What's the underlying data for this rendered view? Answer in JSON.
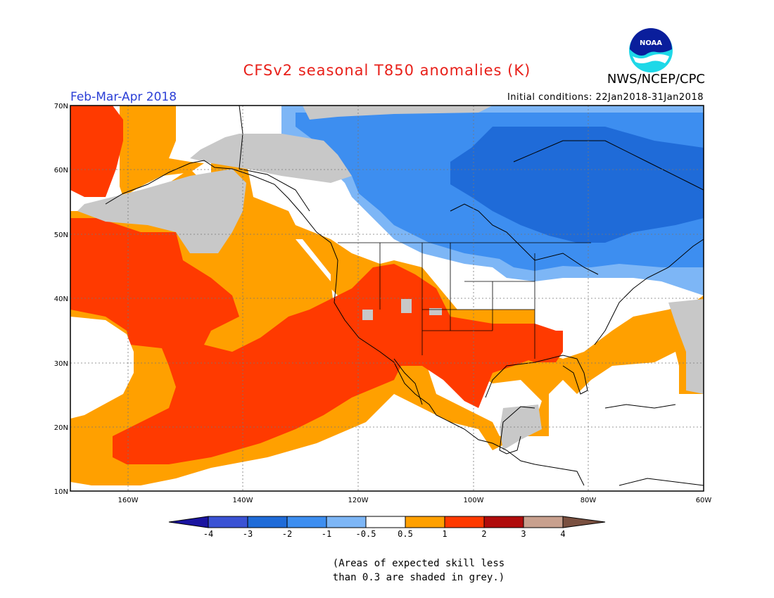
{
  "header": {
    "title": "CFSv2 seasonal T850 anomalies (K)",
    "period": "Feb-Mar-Apr 2018",
    "initial_conditions": "Initial conditions: 22Jan2018-31Jan2018",
    "organization": "NWS/NCEP/CPC",
    "logo_text": "NOAA"
  },
  "colors": {
    "title": "#e8201a",
    "period": "#2b3fd6",
    "lt_-3": "#3a52d4",
    "-3_-2": "#1f6bd8",
    "-2_-1": "#3d8ef0",
    "-1_-0.5": "#7db6f6",
    "neutral": "#ffffff",
    "0.5_1": "#ffa000",
    "1_2": "#ff3a00",
    "2_3": "#b00c0c",
    "3_4": "#c8a08e",
    "gt_4": "#7a5040",
    "low_skill": "#c8c8c8"
  },
  "map": {
    "lat_labels": [
      "70N",
      "60N",
      "50N",
      "40N",
      "30N",
      "20N",
      "10N"
    ],
    "lon_labels": [
      "160W",
      "140W",
      "120W",
      "100W",
      "80W",
      "60W"
    ]
  },
  "colorbar": {
    "labels": [
      "-4",
      "-3",
      "-2",
      "-1",
      "-0.5",
      "0.5",
      "1",
      "2",
      "3",
      "4"
    ]
  },
  "note": {
    "line1": "(Areas of expected skill less",
    "line2": "than 0.3 are shaded in grey.)"
  }
}
